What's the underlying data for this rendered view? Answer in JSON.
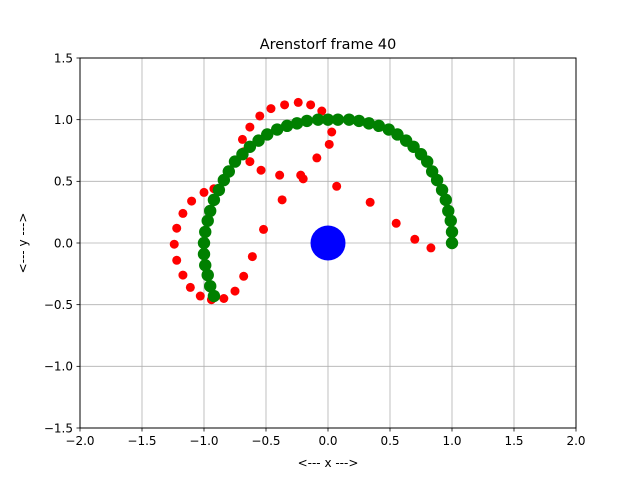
{
  "chart_data": {
    "type": "scatter",
    "title": "Arenstorf frame 40",
    "xlabel": "<---  x  --->",
    "ylabel": "<---  y  --->",
    "xlim": [
      -2.0,
      2.0
    ],
    "ylim": [
      -1.5,
      1.5
    ],
    "xticks": [
      -2.0,
      -1.5,
      -1.0,
      -0.5,
      0.0,
      0.5,
      1.0,
      1.5,
      2.0
    ],
    "yticks": [
      -1.5,
      -1.0,
      -0.5,
      0.0,
      0.5,
      1.0,
      1.5
    ],
    "xtick_labels": [
      "−2.0",
      "−1.5",
      "−1.0",
      "−0.5",
      "0.0",
      "0.5",
      "1.0",
      "1.5",
      "2.0"
    ],
    "ytick_labels": [
      "−1.5",
      "−1.0",
      "−0.5",
      "0.0",
      "0.5",
      "1.0",
      "1.5"
    ],
    "grid": true,
    "series": [
      {
        "color": "#ff0000",
        "marker": "small-circle",
        "points": [
          [
            1.0,
            0.0
          ],
          [
            0.83,
            -0.04
          ],
          [
            0.7,
            0.03
          ],
          [
            0.55,
            0.16
          ],
          [
            0.34,
            0.33
          ],
          [
            0.07,
            0.46
          ],
          [
            -0.2,
            0.52
          ],
          [
            -0.22,
            0.55
          ],
          [
            -0.39,
            0.55
          ],
          [
            -0.54,
            0.59
          ],
          [
            -0.63,
            0.66
          ],
          [
            -0.68,
            0.74
          ],
          [
            -0.69,
            0.84
          ],
          [
            -0.63,
            0.94
          ],
          [
            -0.55,
            1.03
          ],
          [
            -0.46,
            1.09
          ],
          [
            -0.35,
            1.12
          ],
          [
            -0.24,
            1.14
          ],
          [
            -0.14,
            1.12
          ],
          [
            -0.05,
            1.07
          ],
          [
            0.01,
            1.0
          ],
          [
            0.03,
            0.9
          ],
          [
            0.01,
            0.8
          ],
          [
            -0.09,
            0.69
          ],
          [
            -0.37,
            0.35
          ],
          [
            -0.52,
            0.11
          ],
          [
            -0.61,
            -0.11
          ],
          [
            -0.68,
            -0.27
          ],
          [
            -0.75,
            -0.39
          ],
          [
            -0.84,
            -0.45
          ],
          [
            -0.94,
            -0.46
          ],
          [
            -1.03,
            -0.43
          ],
          [
            -1.11,
            -0.36
          ],
          [
            -1.17,
            -0.26
          ],
          [
            -1.22,
            -0.14
          ],
          [
            -1.24,
            -0.01
          ],
          [
            -1.22,
            0.12
          ],
          [
            -1.17,
            0.24
          ],
          [
            -1.1,
            0.34
          ],
          [
            -1.0,
            0.41
          ],
          [
            -0.92,
            0.44
          ]
        ]
      },
      {
        "color": "#008000",
        "marker": "large-circle",
        "points": [
          [
            1.0,
            0.0
          ],
          [
            1.0,
            0.09
          ],
          [
            0.99,
            0.18
          ],
          [
            0.97,
            0.26
          ],
          [
            0.95,
            0.35
          ],
          [
            0.92,
            0.43
          ],
          [
            0.88,
            0.51
          ],
          [
            0.84,
            0.58
          ],
          [
            0.8,
            0.66
          ],
          [
            0.75,
            0.72
          ],
          [
            0.69,
            0.78
          ],
          [
            0.63,
            0.83
          ],
          [
            0.56,
            0.88
          ],
          [
            0.49,
            0.92
          ],
          [
            0.41,
            0.95
          ],
          [
            0.33,
            0.97
          ],
          [
            0.25,
            0.99
          ],
          [
            0.17,
            1.0
          ],
          [
            0.08,
            1.0
          ],
          [
            0.0,
            1.0
          ],
          [
            -0.08,
            1.0
          ],
          [
            -0.17,
            0.99
          ],
          [
            -0.25,
            0.97
          ],
          [
            -0.33,
            0.95
          ],
          [
            -0.41,
            0.92
          ],
          [
            -0.49,
            0.88
          ],
          [
            -0.56,
            0.83
          ],
          [
            -0.63,
            0.78
          ],
          [
            -0.69,
            0.72
          ],
          [
            -0.75,
            0.66
          ],
          [
            -0.8,
            0.58
          ],
          [
            -0.84,
            0.51
          ],
          [
            -0.88,
            0.43
          ],
          [
            -0.92,
            0.35
          ],
          [
            -0.95,
            0.26
          ],
          [
            -0.97,
            0.18
          ],
          [
            -0.99,
            0.09
          ],
          [
            -1.0,
            0.0
          ],
          [
            -1.0,
            -0.09
          ],
          [
            -0.99,
            -0.18
          ],
          [
            -0.97,
            -0.26
          ],
          [
            -0.95,
            -0.35
          ],
          [
            -0.92,
            -0.43
          ]
        ]
      },
      {
        "color": "#0000ff",
        "marker": "big-circle",
        "points": [
          [
            0.0,
            0.0
          ]
        ]
      }
    ]
  }
}
